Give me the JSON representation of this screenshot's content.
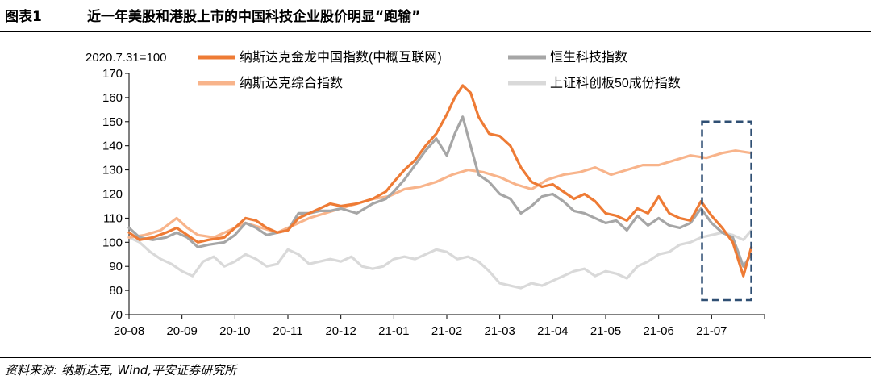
{
  "header": {
    "figure_label": "图表1",
    "title": "近一年美股和港股上市的中国科技企业股价明显“跑输”"
  },
  "source": "资料来源: 纳斯达克, Wind,平安证券研究所",
  "chart_data": {
    "type": "line",
    "ylabel": "2020.7.31=100",
    "ylim": [
      70,
      170
    ],
    "yticks": [
      "170",
      "160",
      "150",
      "140",
      "130",
      "120",
      "110",
      "100",
      "90",
      "80",
      "70"
    ],
    "categories": [
      "20-08",
      "20-09",
      "20-10",
      "20-11",
      "20-12",
      "21-01",
      "21-02",
      "21-03",
      "21-04",
      "21-05",
      "21-06",
      "21-07"
    ],
    "highlight": {
      "x_range": [
        10.82,
        11.75
      ],
      "y_range": [
        76,
        150
      ]
    },
    "series": [
      {
        "name": "纳斯达克金龙中国指数(中概互联网)",
        "color": "#EE7B35",
        "x": [
          0,
          0.2,
          0.45,
          0.7,
          0.9,
          1.1,
          1.3,
          1.5,
          1.8,
          2.0,
          2.2,
          2.4,
          2.6,
          2.8,
          3.0,
          3.2,
          3.4,
          3.6,
          3.8,
          4.0,
          4.3,
          4.6,
          4.85,
          5.0,
          5.2,
          5.4,
          5.6,
          5.8,
          6.0,
          6.15,
          6.3,
          6.45,
          6.6,
          6.8,
          7.0,
          7.2,
          7.4,
          7.6,
          7.8,
          8.0,
          8.2,
          8.4,
          8.6,
          8.8,
          9.0,
          9.2,
          9.4,
          9.6,
          9.8,
          10.0,
          10.2,
          10.4,
          10.6,
          10.8,
          11.0,
          11.2,
          11.4,
          11.6,
          11.75
        ],
        "values": [
          104,
          101,
          102,
          104,
          106,
          103,
          100,
          101,
          102,
          106,
          110,
          109,
          106,
          104,
          105,
          110,
          112,
          114,
          116,
          115,
          116,
          118,
          121,
          125,
          130,
          134,
          140,
          145,
          153,
          160,
          165,
          162,
          152,
          145,
          144,
          140,
          131,
          125,
          123,
          124,
          121,
          118,
          120,
          117,
          112,
          111,
          109,
          114,
          112,
          119,
          112,
          110,
          109,
          117,
          111,
          106,
          100,
          86,
          98
        ]
      },
      {
        "name": "恒生科技指数",
        "color": "#A6A6A6",
        "x": [
          0,
          0.2,
          0.45,
          0.7,
          0.9,
          1.1,
          1.3,
          1.5,
          1.8,
          2.0,
          2.2,
          2.4,
          2.6,
          2.8,
          3.0,
          3.2,
          3.4,
          3.6,
          3.8,
          4.0,
          4.3,
          4.6,
          4.85,
          5.0,
          5.2,
          5.4,
          5.6,
          5.8,
          6.0,
          6.15,
          6.3,
          6.45,
          6.6,
          6.8,
          7.0,
          7.2,
          7.4,
          7.6,
          7.8,
          8.0,
          8.2,
          8.4,
          8.6,
          8.8,
          9.0,
          9.2,
          9.4,
          9.6,
          9.8,
          10.0,
          10.2,
          10.4,
          10.6,
          10.8,
          11.0,
          11.2,
          11.4,
          11.6,
          11.75
        ],
        "values": [
          106,
          102,
          101,
          102,
          104,
          102,
          98,
          99,
          100,
          103,
          108,
          106,
          103,
          104,
          105,
          112,
          112,
          113,
          113,
          114,
          112,
          116,
          118,
          121,
          126,
          132,
          138,
          143,
          136,
          145,
          152,
          140,
          128,
          125,
          120,
          118,
          112,
          115,
          119,
          120,
          117,
          113,
          112,
          110,
          108,
          109,
          105,
          111,
          107,
          110,
          107,
          106,
          108,
          114,
          108,
          104,
          102,
          90,
          95
        ]
      },
      {
        "name": "纳斯达克综合指数",
        "color": "#F8B48B",
        "x": [
          0,
          0.3,
          0.6,
          0.9,
          1.1,
          1.3,
          1.6,
          1.9,
          2.2,
          2.5,
          2.8,
          3.1,
          3.4,
          3.7,
          4.0,
          4.3,
          4.6,
          4.9,
          5.2,
          5.5,
          5.8,
          6.1,
          6.4,
          6.7,
          7.0,
          7.3,
          7.6,
          7.9,
          8.2,
          8.5,
          8.8,
          9.1,
          9.4,
          9.7,
          10.0,
          10.3,
          10.6,
          10.9,
          11.2,
          11.45,
          11.75
        ],
        "values": [
          102,
          103,
          105,
          110,
          106,
          103,
          102,
          105,
          108,
          106,
          104,
          107,
          110,
          112,
          114,
          116,
          118,
          119,
          122,
          123,
          125,
          128,
          130,
          129,
          127,
          124,
          122,
          126,
          128,
          129,
          131,
          128,
          130,
          132,
          132,
          134,
          136,
          135,
          137,
          138,
          137
        ]
      },
      {
        "name": "上证科创板50成份指数",
        "color": "#D9D9D9",
        "x": [
          0,
          0.2,
          0.4,
          0.6,
          0.8,
          1.0,
          1.2,
          1.4,
          1.6,
          1.8,
          2.0,
          2.2,
          2.4,
          2.6,
          2.8,
          3.0,
          3.2,
          3.4,
          3.6,
          3.8,
          4.0,
          4.2,
          4.4,
          4.6,
          4.8,
          5.0,
          5.2,
          5.4,
          5.6,
          5.8,
          6.0,
          6.2,
          6.4,
          6.6,
          6.8,
          7.0,
          7.2,
          7.4,
          7.6,
          7.8,
          8.0,
          8.2,
          8.4,
          8.6,
          8.8,
          9.0,
          9.2,
          9.4,
          9.6,
          9.8,
          10.0,
          10.2,
          10.4,
          10.6,
          10.8,
          11.0,
          11.2,
          11.4,
          11.6,
          11.75
        ],
        "values": [
          102,
          100,
          96,
          93,
          91,
          88,
          86,
          92,
          94,
          90,
          92,
          95,
          93,
          90,
          91,
          97,
          95,
          91,
          92,
          93,
          92,
          94,
          90,
          89,
          90,
          93,
          94,
          93,
          95,
          97,
          96,
          93,
          94,
          92,
          88,
          83,
          82,
          81,
          83,
          82,
          84,
          86,
          88,
          89,
          86,
          88,
          87,
          85,
          90,
          92,
          95,
          96,
          99,
          100,
          102,
          103,
          104,
          103,
          101,
          105
        ]
      }
    ]
  }
}
